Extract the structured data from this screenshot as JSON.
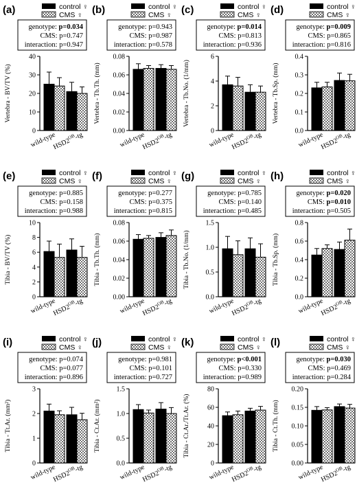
{
  "legend": {
    "control": "control ♀",
    "cms": "CMS ♀"
  },
  "x_categories": [
    "wild-type",
    "HSD2",
    "OB",
    "-tg"
  ],
  "stat_labels": {
    "genotype": "genotype: ",
    "cms": "CMS: ",
    "interaction": "interaction: "
  },
  "colors": {
    "control_bar": "#000000",
    "cms_bar_pattern": "checkerboard-grey"
  },
  "chart_data": [
    {
      "panel": "(a)",
      "type": "bar",
      "ylabel": "Vertebra - BV/TV (%)",
      "ylim": [
        0,
        40
      ],
      "yticks": [
        0,
        10,
        20,
        30,
        40
      ],
      "ytick_labels": [
        "0",
        "10",
        "20",
        "30",
        "40"
      ],
      "categories": [
        "wild-type",
        "HSD2OB-tg"
      ],
      "series": [
        {
          "name": "control ♀",
          "values": [
            25,
            21
          ],
          "errors": [
            6.5,
            5
          ]
        },
        {
          "name": "CMS ♀",
          "values": [
            24,
            20
          ],
          "errors": [
            4.5,
            3.5
          ]
        }
      ],
      "stats": {
        "genotype": "p=0.034",
        "genotype_bold": true,
        "cms": "p=0.747",
        "cms_bold": false,
        "interaction": "p=0.947",
        "interaction_bold": false
      }
    },
    {
      "panel": "(b)",
      "type": "bar",
      "ylabel": "Vertebra - Tb.Th. (mm)",
      "ylim": [
        0,
        0.08
      ],
      "yticks": [
        0,
        0.02,
        0.04,
        0.06,
        0.08
      ],
      "ytick_labels": [
        "0.00",
        "0.02",
        "0.04",
        "0.06",
        "0.08"
      ],
      "categories": [
        "wild-type",
        "HSD2OB-tg"
      ],
      "series": [
        {
          "name": "control ♀",
          "values": [
            0.066,
            0.067
          ],
          "errors": [
            0.006,
            0.004
          ]
        },
        {
          "name": "CMS ♀",
          "values": [
            0.067,
            0.066
          ],
          "errors": [
            0.003,
            0.004
          ]
        }
      ],
      "stats": {
        "genotype": "p=0.943",
        "genotype_bold": false,
        "cms": "p=0.987",
        "cms_bold": false,
        "interaction": "p=0.578",
        "interaction_bold": false
      }
    },
    {
      "panel": "(c)",
      "type": "bar",
      "ylabel": "Vertebra - Tb.No. (1/mm)",
      "ylim": [
        0,
        6
      ],
      "yticks": [
        0,
        2,
        4,
        6
      ],
      "ytick_labels": [
        "0",
        "2",
        "4",
        "6"
      ],
      "categories": [
        "wild-type",
        "HSD2OB-tg"
      ],
      "series": [
        {
          "name": "control ♀",
          "values": [
            3.7,
            3.1
          ],
          "errors": [
            0.7,
            0.6
          ]
        },
        {
          "name": "CMS ♀",
          "values": [
            3.6,
            3.1
          ],
          "errors": [
            0.7,
            0.5
          ]
        }
      ],
      "stats": {
        "genotype": "p=0.014",
        "genotype_bold": true,
        "cms": "p=0.813",
        "cms_bold": false,
        "interaction": "p=0.936",
        "interaction_bold": false
      }
    },
    {
      "panel": "(d)",
      "type": "bar",
      "ylabel": "Vertebra - Tb.Sp. (mm)",
      "ylim": [
        0,
        0.4
      ],
      "yticks": [
        0,
        0.1,
        0.2,
        0.3,
        0.4
      ],
      "ytick_labels": [
        "0.0",
        "0.1",
        "0.2",
        "0.3",
        "0.4"
      ],
      "categories": [
        "wild-type",
        "HSD2OB-tg"
      ],
      "series": [
        {
          "name": "control ♀",
          "values": [
            0.23,
            0.27
          ],
          "errors": [
            0.03,
            0.04
          ]
        },
        {
          "name": "CMS ♀",
          "values": [
            0.235,
            0.268
          ],
          "errors": [
            0.025,
            0.035
          ]
        }
      ],
      "stats": {
        "genotype": "p=0.009",
        "genotype_bold": true,
        "cms": "p=0.865",
        "cms_bold": false,
        "interaction": "p=0.816",
        "interaction_bold": false
      }
    },
    {
      "panel": "(e)",
      "type": "bar",
      "ylabel": "Tibia - BV/TV (%)",
      "ylim": [
        0,
        10
      ],
      "yticks": [
        0,
        2,
        4,
        6,
        8,
        10
      ],
      "ytick_labels": [
        "0",
        "2",
        "4",
        "6",
        "8",
        "10"
      ],
      "categories": [
        "wild-type",
        "HSD2OB-tg"
      ],
      "series": [
        {
          "name": "control ♀",
          "values": [
            6.1,
            6.3
          ],
          "errors": [
            1.4,
            1.5
          ]
        },
        {
          "name": "CMS ♀",
          "values": [
            5.3,
            5.3
          ],
          "errors": [
            1.8,
            1.5
          ]
        }
      ],
      "stats": {
        "genotype": "p=0.885",
        "genotype_bold": false,
        "cms": "p=0.158",
        "cms_bold": false,
        "interaction": "p=0.988",
        "interaction_bold": false
      }
    },
    {
      "panel": "(f)",
      "type": "bar",
      "ylabel": "Tibia - Tb.Th. (mm)",
      "ylim": [
        0,
        0.08
      ],
      "yticks": [
        0,
        0.02,
        0.04,
        0.06,
        0.08
      ],
      "ytick_labels": [
        "0.00",
        "0.02",
        "0.04",
        "0.06",
        "0.08"
      ],
      "categories": [
        "wild-type",
        "HSD2OB-tg"
      ],
      "series": [
        {
          "name": "control ♀",
          "values": [
            0.062,
            0.064
          ],
          "errors": [
            0.005,
            0.005
          ]
        },
        {
          "name": "CMS ♀",
          "values": [
            0.063,
            0.066
          ],
          "errors": [
            0.003,
            0.006
          ]
        }
      ],
      "stats": {
        "genotype": "p=0.277",
        "genotype_bold": false,
        "cms": "p=0.375",
        "cms_bold": false,
        "interaction": "p=0.815",
        "interaction_bold": false
      }
    },
    {
      "panel": "(g)",
      "type": "bar",
      "ylabel": "Tibia - Tb.No. (1/mm)",
      "ylim": [
        0,
        1.5
      ],
      "yticks": [
        0,
        0.5,
        1.0,
        1.5
      ],
      "ytick_labels": [
        "0.0",
        "0.5",
        "1.0",
        "1.5"
      ],
      "categories": [
        "wild-type",
        "HSD2OB-tg"
      ],
      "series": [
        {
          "name": "control ♀",
          "values": [
            0.97,
            0.97
          ],
          "errors": [
            0.25,
            0.22
          ]
        },
        {
          "name": "CMS ♀",
          "values": [
            0.85,
            0.8
          ],
          "errors": [
            0.28,
            0.27
          ]
        }
      ],
      "stats": {
        "genotype": "p=0.785",
        "genotype_bold": false,
        "cms": "p=0.140",
        "cms_bold": false,
        "interaction": "p=0.485",
        "interaction_bold": false
      }
    },
    {
      "panel": "(h)",
      "type": "bar",
      "ylabel": "Tibia - Tb.Sp. (mm)",
      "ylim": [
        0,
        0.8
      ],
      "yticks": [
        0,
        0.2,
        0.4,
        0.6,
        0.8
      ],
      "ytick_labels": [
        "0.0",
        "0.2",
        "0.4",
        "0.6",
        "0.8"
      ],
      "categories": [
        "wild-type",
        "HSD2OB-tg"
      ],
      "series": [
        {
          "name": "control ♀",
          "values": [
            0.45,
            0.51
          ],
          "errors": [
            0.07,
            0.08
          ]
        },
        {
          "name": "CMS ♀",
          "values": [
            0.52,
            0.61
          ],
          "errors": [
            0.04,
            0.12
          ]
        }
      ],
      "stats": {
        "genotype": "p=0.020",
        "genotype_bold": true,
        "cms": "p=0.010",
        "cms_bold": true,
        "interaction": "p=0.505",
        "interaction_bold": false
      }
    },
    {
      "panel": "(i)",
      "type": "bar",
      "ylabel": "Tibia - Tt.Ar. (mm²)",
      "ylim": [
        0,
        3
      ],
      "yticks": [
        0,
        1,
        2,
        3
      ],
      "ytick_labels": [
        "0",
        "1",
        "2",
        "3"
      ],
      "categories": [
        "wild-type",
        "HSD2OB-tg"
      ],
      "series": [
        {
          "name": "control ♀",
          "values": [
            2.1,
            1.95
          ],
          "errors": [
            0.28,
            0.3
          ]
        },
        {
          "name": "CMS ♀",
          "values": [
            1.95,
            1.75
          ],
          "errors": [
            0.16,
            0.26
          ]
        }
      ],
      "stats": {
        "genotype": "p=0.074",
        "genotype_bold": false,
        "cms": "p=0.077",
        "cms_bold": false,
        "interaction": "p=0.896",
        "interaction_bold": false
      }
    },
    {
      "panel": "(j)",
      "type": "bar",
      "ylabel": "Tibia - Ct.Ar. (mm²)",
      "ylim": [
        0,
        1.5
      ],
      "yticks": [
        0,
        0.5,
        1.0,
        1.5
      ],
      "ytick_labels": [
        "0.0",
        "0.5",
        "1.0",
        "1.5"
      ],
      "categories": [
        "wild-type",
        "HSD2OB-tg"
      ],
      "series": [
        {
          "name": "control ♀",
          "values": [
            1.08,
            1.09
          ],
          "errors": [
            0.1,
            0.13
          ]
        },
        {
          "name": "CMS ♀",
          "values": [
            1.01,
            1.0
          ],
          "errors": [
            0.06,
            0.12
          ]
        }
      ],
      "stats": {
        "genotype": "p=0.981",
        "genotype_bold": false,
        "cms": "p=0.101",
        "cms_bold": false,
        "interaction": "p=0.727",
        "interaction_bold": false
      }
    },
    {
      "panel": "(k)",
      "type": "bar",
      "ylabel": "Tibia - Ct.Ar./Tt.Ar. (%)",
      "ylim": [
        0,
        80
      ],
      "yticks": [
        0,
        20,
        40,
        60,
        80
      ],
      "ytick_labels": [
        "0",
        "20",
        "40",
        "60",
        "80"
      ],
      "categories": [
        "wild-type",
        "HSD2OB-tg"
      ],
      "series": [
        {
          "name": "control ♀",
          "values": [
            51,
            56
          ],
          "errors": [
            4,
            3
          ]
        },
        {
          "name": "CMS ♀",
          "values": [
            52,
            57
          ],
          "errors": [
            4,
            4
          ]
        }
      ],
      "stats": {
        "genotype": "p<0.001",
        "genotype_bold": true,
        "cms": "p=0.330",
        "cms_bold": false,
        "interaction": "p=0.989",
        "interaction_bold": false
      }
    },
    {
      "panel": "(l)",
      "type": "bar",
      "ylabel": "Tibia - Ct.Th. (mm)",
      "ylim": [
        0,
        0.2
      ],
      "yticks": [
        0,
        0.05,
        0.1,
        0.15,
        0.2
      ],
      "ytick_labels": [
        "0.00",
        "0.05",
        "0.10",
        "0.15",
        "0.20"
      ],
      "categories": [
        "wild-type",
        "HSD2OB-tg"
      ],
      "series": [
        {
          "name": "control ♀",
          "values": [
            0.142,
            0.152
          ],
          "errors": [
            0.01,
            0.007
          ]
        },
        {
          "name": "CMS ♀",
          "values": [
            0.143,
            0.148
          ],
          "errors": [
            0.006,
            0.01
          ]
        }
      ],
      "stats": {
        "genotype": "p=0.030",
        "genotype_bold": true,
        "cms": "p=0.469",
        "cms_bold": false,
        "interaction": "p=0.284",
        "interaction_bold": false
      }
    }
  ]
}
